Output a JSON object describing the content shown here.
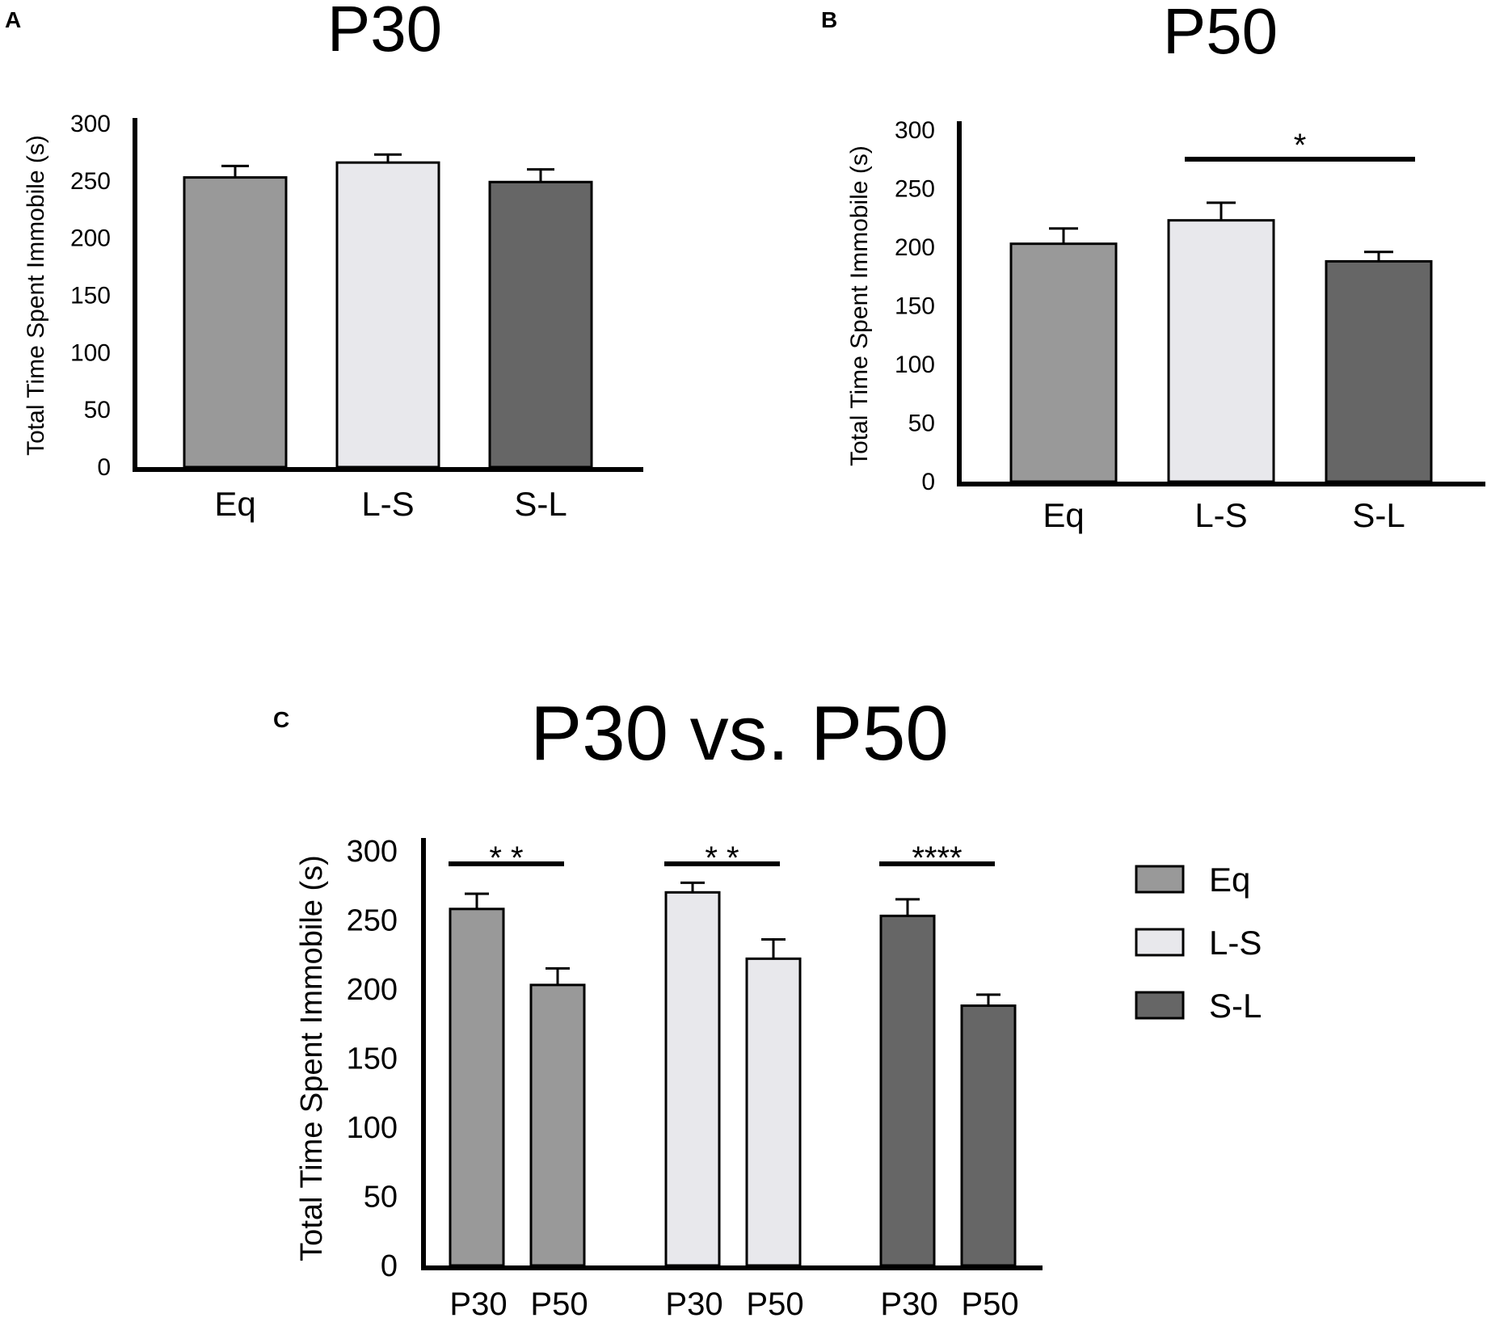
{
  "chart_data": [
    {
      "id": "A",
      "panel_label": "A",
      "type": "bar",
      "title": "P30",
      "ylabel": "Total Time Spent Immobile (s)",
      "xlabel": "",
      "ylim": [
        0,
        300
      ],
      "yticks": [
        "0",
        "50",
        "100",
        "150",
        "200",
        "250",
        "300"
      ],
      "categories": [
        "Eq",
        "L-S",
        "S-L"
      ],
      "values": [
        253,
        266,
        249
      ],
      "errors": [
        10,
        7,
        11
      ],
      "colors": [
        "#999999",
        "#e8e8ec",
        "#666666"
      ],
      "significance": []
    },
    {
      "id": "B",
      "panel_label": "B",
      "type": "bar",
      "title": "P50",
      "ylabel": "Total Time Spent Immobile (s)",
      "xlabel": "",
      "ylim": [
        0,
        300
      ],
      "yticks": [
        "0",
        "50",
        "100",
        "150",
        "200",
        "250",
        "300"
      ],
      "categories": [
        "Eq",
        "L-S",
        "S-L"
      ],
      "values": [
        203,
        223,
        188
      ],
      "errors": [
        13,
        15,
        8
      ],
      "colors": [
        "#999999",
        "#e8e8ec",
        "#666666"
      ],
      "significance": [
        {
          "from": 1,
          "to": 2,
          "label": "*"
        }
      ]
    },
    {
      "id": "C",
      "panel_label": "C",
      "type": "bar",
      "title": "P30 vs. P50",
      "ylabel": "Total Time Spent Immobile (s)",
      "xlabel": "",
      "ylim": [
        0,
        300
      ],
      "yticks": [
        "0",
        "50",
        "100",
        "150",
        "200",
        "250",
        "300"
      ],
      "groups": [
        "Eq",
        "L-S",
        "S-L"
      ],
      "subcategories": [
        "P30",
        "P50"
      ],
      "series": [
        {
          "name": "Eq",
          "color": "#999999",
          "values": [
            258,
            203
          ],
          "errors": [
            11,
            12
          ]
        },
        {
          "name": "L-S",
          "color": "#e8e8ec",
          "values": [
            270,
            222
          ],
          "errors": [
            7,
            14
          ]
        },
        {
          "name": "S-L",
          "color": "#666666",
          "values": [
            253,
            188
          ],
          "errors": [
            12,
            8
          ]
        }
      ],
      "significance": [
        {
          "group": 0,
          "label": "* *"
        },
        {
          "group": 1,
          "label": "* *"
        },
        {
          "group": 2,
          "label": "****"
        }
      ],
      "legend": {
        "position": "right",
        "entries": [
          {
            "label": "Eq",
            "color": "#999999"
          },
          {
            "label": "L-S",
            "color": "#e8e8ec"
          },
          {
            "label": "S-L",
            "color": "#666666"
          }
        ]
      }
    }
  ]
}
